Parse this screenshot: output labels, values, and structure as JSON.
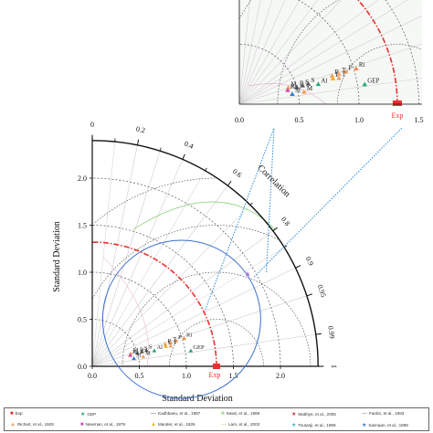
{
  "chart_data": [
    {
      "type": "scatter",
      "subtype": "taylor-diagram",
      "xlabel": "Standard Deviation",
      "ylabel": "Standard Deviation",
      "arc_label": "Correlation",
      "std_ticks": [
        "0.0",
        "0.5",
        "1.0",
        "1.5",
        "2.0"
      ],
      "std_max": 2.4,
      "corr_ticks": [
        "0",
        "0.2",
        "0.4",
        "0.6",
        "0.8",
        "0.9",
        "0.95",
        "0.99",
        "1"
      ],
      "reference": {
        "label": "Exp",
        "std": 1.32
      },
      "points": [
        {
          "label": "Ri",
          "std": 1.02,
          "corr": 0.957
        },
        {
          "label": "R",
          "std": 0.81,
          "corr": 0.957
        },
        {
          "label": "T",
          "std": 0.87,
          "corr": 0.957
        },
        {
          "label": "F",
          "std": 0.93,
          "corr": 0.957
        },
        {
          "label": "L",
          "std": 0.81,
          "corr": 0.965
        },
        {
          "label": "T",
          "std": 0.86,
          "corr": 0.968
        },
        {
          "label": "GEP",
          "std": 1.06,
          "corr": 0.988
        },
        {
          "label": "M",
          "std": 0.43,
          "corr": 0.95
        },
        {
          "label": "K",
          "std": 0.42,
          "corr": 0.962
        },
        {
          "label": "B",
          "std": 0.5,
          "corr": 0.96
        },
        {
          "label": "S",
          "std": 0.55,
          "corr": 0.96
        },
        {
          "label": "S",
          "std": 0.6,
          "corr": 0.96
        },
        {
          "label": "Al",
          "std": 0.68,
          "corr": 0.97
        },
        {
          "label": "Sf",
          "std": 0.45,
          "corr": 0.983
        },
        {
          "label": "M",
          "std": 0.55,
          "corr": 0.983
        },
        {
          "label": "",
          "std": 1.92,
          "corr": 0.86
        }
      ]
    },
    {
      "type": "scatter",
      "subtype": "taylor-diagram-zoom",
      "x_ticks": [
        "0.0",
        "0.5",
        "1.0",
        "1.5"
      ],
      "reference": {
        "label": "Exp"
      }
    }
  ],
  "legend": [
    {
      "label": "Exp",
      "marker": "square",
      "color": "#e8312f"
    },
    {
      "label": "GEP",
      "marker": "star",
      "color": "#2aa87a"
    },
    {
      "label": "Kadhbaeu, et al., 1997",
      "marker": "line",
      "color": "#555555"
    },
    {
      "label": "Swati, et al., 1999",
      "marker": "square",
      "color": "#9edb8e"
    },
    {
      "label": "Matthys, et al., 2005",
      "marker": "star",
      "color": "#c0392b"
    },
    {
      "label": "Fardin, et al., 1983",
      "marker": "line",
      "color": "#777777"
    },
    {
      "label": "Richart, et al., 1928",
      "marker": "triangle",
      "color": "#f0a060"
    },
    {
      "label": "Newman, et al., 1979",
      "marker": "square",
      "color": "#d44bb0"
    },
    {
      "label": "Mander, et al., 1826",
      "marker": "triangle",
      "color": "#f0b020"
    },
    {
      "label": "Lam, et al., 2003",
      "marker": "line",
      "color": "#e0c070"
    },
    {
      "label": "Toutanji, et al., 1999",
      "marker": "star",
      "color": "#40b0d0"
    },
    {
      "label": "Saimaan, et al., 1998",
      "marker": "star",
      "color": "#3a7ad0"
    }
  ],
  "colors": {
    "reference_arc": "#e8312f",
    "zoom_circle": "#3a6fd0",
    "connector": "#2a8bd6",
    "green_arc": "#7fce6b"
  }
}
